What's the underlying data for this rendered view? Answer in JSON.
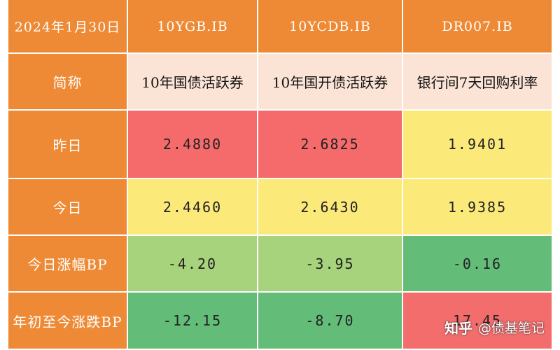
{
  "header": {
    "date": "2024年1月30日",
    "col1": "10YGB.IB",
    "col2": "10YCDB.IB",
    "col3": "DR007.IB"
  },
  "rows": {
    "name": {
      "label": "简称",
      "c1": "10年国债活跃券",
      "c2": "10年国开债活跃券",
      "c3": "银行间7天回购利率"
    },
    "yesterday": {
      "label": "昨日",
      "c1": "2.4880",
      "c2": "2.6825",
      "c3": "1.9401"
    },
    "today": {
      "label": "今日",
      "c1": "2.4460",
      "c2": "2.6430",
      "c3": "1.9385"
    },
    "change": {
      "label": "今日涨幅BP",
      "c1": "-4.20",
      "c2": "-3.95",
      "c3": "-0.16"
    },
    "ytd": {
      "label": "年初至今涨跌BP",
      "c1": "-12.15",
      "c2": "-8.70",
      "c3": "17.45"
    }
  },
  "watermark": {
    "logo": "知乎",
    "handle": "@债基笔记"
  },
  "colors": {
    "header": "#ee8a36",
    "name_row": "#fbe3d6",
    "red": "#f56b6b",
    "yellow": "#fbe979",
    "light_green": "#a6d37b",
    "green": "#63bd78"
  }
}
